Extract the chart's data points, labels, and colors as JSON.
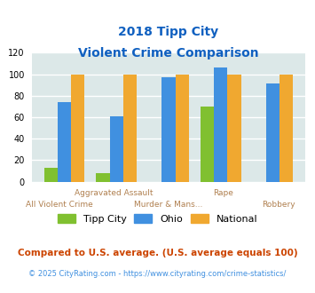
{
  "title_line1": "2018 Tipp City",
  "title_line2": "Violent Crime Comparison",
  "x_labels_top": [
    "",
    "Aggravated Assault",
    "",
    "Rape",
    ""
  ],
  "x_labels_bottom": [
    "All Violent Crime",
    "",
    "Murder & Mans...",
    "",
    "Robbery"
  ],
  "tipp_city": [
    13,
    8,
    0,
    70,
    0
  ],
  "ohio": [
    74,
    61,
    97,
    106,
    91
  ],
  "national": [
    100,
    100,
    100,
    100,
    100
  ],
  "bar_colors": {
    "tipp_city": "#80c030",
    "ohio": "#4090e0",
    "national": "#f0a830"
  },
  "ylim": [
    0,
    120
  ],
  "yticks": [
    0,
    20,
    40,
    60,
    80,
    100,
    120
  ],
  "background_color": "#dce8e8",
  "title_color": "#1060c0",
  "xlabel_color": "#b08050",
  "footer_note": "Compared to U.S. average. (U.S. average equals 100)",
  "footer_copy": "© 2025 CityRating.com - https://www.cityrating.com/crime-statistics/",
  "footer_link_color": "#4090e0",
  "legend_labels": [
    "Tipp City",
    "Ohio",
    "National"
  ],
  "grid_color": "#ffffff"
}
